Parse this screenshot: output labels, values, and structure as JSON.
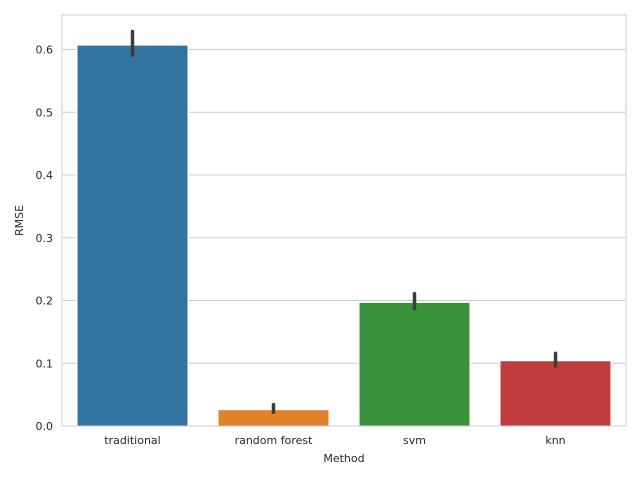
{
  "chart_data": {
    "type": "bar",
    "categories": [
      "traditional",
      "random forest",
      "svm",
      "knn"
    ],
    "values": [
      0.607,
      0.026,
      0.197,
      0.104
    ],
    "error_bars": [
      {
        "low": 0.591,
        "high": 0.629
      },
      {
        "low": 0.022,
        "high": 0.034
      },
      {
        "low": 0.187,
        "high": 0.211
      },
      {
        "low": 0.095,
        "high": 0.116
      }
    ],
    "colors": [
      "#3274a1",
      "#e1812c",
      "#3a923a",
      "#c03d3e"
    ],
    "error_color": "#3c3c3c",
    "grid_color": "#cccccc",
    "xlabel": "Method",
    "ylabel": "RMSE",
    "ylim": [
      0,
      0.655
    ],
    "yticks": [
      0.0,
      0.1,
      0.2,
      0.3,
      0.4,
      0.5,
      0.6
    ],
    "ytick_labels": [
      "0.0",
      "0.1",
      "0.2",
      "0.3",
      "0.4",
      "0.5",
      "0.6"
    ],
    "grid": true,
    "legend": "none"
  }
}
